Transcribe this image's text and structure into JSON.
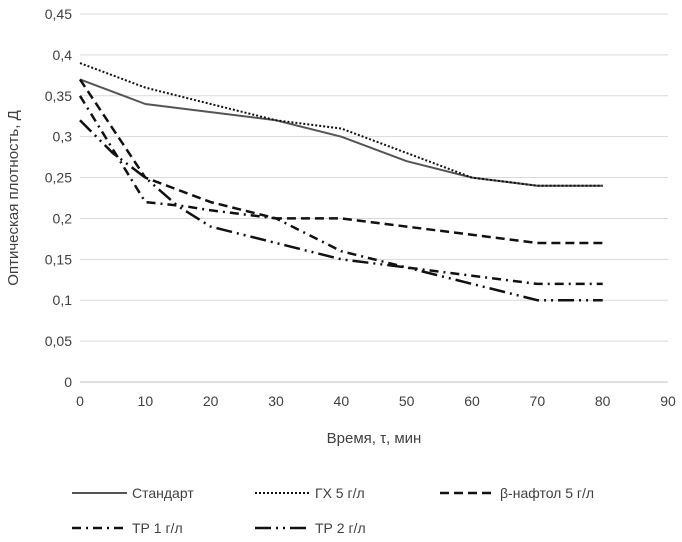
{
  "chart_data": {
    "type": "line",
    "title": "",
    "xlabel": "Время, τ, мин",
    "ylabel": "Оптическая плотность, Д",
    "xlim": [
      0,
      90
    ],
    "ylim": [
      0,
      0.45
    ],
    "x_ticks": [
      0,
      10,
      20,
      30,
      40,
      50,
      60,
      70,
      80,
      90
    ],
    "x_tick_labels": [
      "0",
      "10",
      "20",
      "30",
      "40",
      "50",
      "60",
      "70",
      "80",
      "90"
    ],
    "y_ticks": [
      0,
      0.05,
      0.1,
      0.15,
      0.2,
      0.25,
      0.3,
      0.35,
      0.4,
      0.45
    ],
    "y_tick_labels": [
      "0",
      "0,05",
      "0,1",
      "0,15",
      "0,2",
      "0,25",
      "0,3",
      "0,35",
      "0,4",
      "0,45"
    ],
    "grid": "horizontal",
    "legend_position": "bottom",
    "series": [
      {
        "name": "Стандарт",
        "style": "solid",
        "color": "#555555",
        "x": [
          0,
          10,
          20,
          30,
          40,
          50,
          60,
          70,
          80
        ],
        "values": [
          0.37,
          0.34,
          0.33,
          0.32,
          0.3,
          0.27,
          0.25,
          0.24,
          0.24
        ]
      },
      {
        "name": "ГХ 5 г/л",
        "style": "dotted",
        "color": "#111111",
        "x": [
          0,
          10,
          20,
          30,
          40,
          50,
          60,
          70,
          80
        ],
        "values": [
          0.39,
          0.36,
          0.34,
          0.32,
          0.31,
          0.28,
          0.25,
          0.24,
          0.24
        ]
      },
      {
        "name": "β-нафтол 5 г/л",
        "style": "dashed",
        "color": "#111111",
        "x": [
          0,
          10,
          20,
          30,
          40,
          50,
          60,
          70,
          80
        ],
        "values": [
          0.37,
          0.25,
          0.22,
          0.2,
          0.2,
          0.19,
          0.18,
          0.17,
          0.17
        ]
      },
      {
        "name": "ТР 1 г/л",
        "style": "dashdot",
        "color": "#111111",
        "x": [
          0,
          10,
          16,
          20,
          30,
          40,
          50,
          60,
          70,
          80
        ],
        "values": [
          0.35,
          0.22,
          0.215,
          0.21,
          0.2,
          0.16,
          0.14,
          0.13,
          0.12,
          0.12
        ]
      },
      {
        "name": "ТР 2 г/л",
        "style": "longdashdot",
        "color": "#111111",
        "x": [
          0,
          5,
          10,
          15,
          20,
          30,
          40,
          50,
          60,
          70,
          80
        ],
        "values": [
          0.32,
          0.28,
          0.25,
          0.215,
          0.19,
          0.17,
          0.15,
          0.14,
          0.12,
          0.1,
          0.1
        ]
      }
    ]
  }
}
